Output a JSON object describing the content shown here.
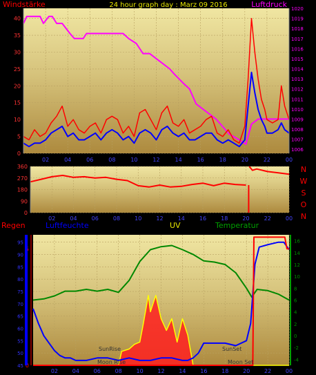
{
  "chart_data": [
    {
      "type": "line",
      "title": "24 hour graph day : Marz 09 2016",
      "ylabel": "Windstärke",
      "y2label": "Luftdruck",
      "x_ticks": [
        "02",
        "04",
        "06",
        "08",
        "10",
        "12",
        "14",
        "16",
        "18",
        "20",
        "22",
        "00"
      ],
      "ylim": [
        0,
        43
      ],
      "y_ticks": [
        0,
        5,
        10,
        15,
        20,
        25,
        30,
        35,
        40
      ],
      "y2lim": [
        1005.6,
        1020
      ],
      "y2_ticks": [
        1006,
        1007,
        1008,
        1009,
        1010,
        1011,
        1012,
        1013,
        1014,
        1015,
        1016,
        1017,
        1018,
        1019,
        1020
      ],
      "x_range": [
        0,
        24
      ],
      "series": [
        {
          "name": "Windstärke",
          "color": "#ff0000",
          "axis": "left",
          "x": [
            0,
            0.5,
            1,
            1.5,
            2,
            2.5,
            3,
            3.5,
            4,
            4.5,
            5,
            5.5,
            6,
            6.5,
            7,
            7.5,
            8,
            8.5,
            9,
            9.5,
            10,
            10.5,
            11,
            11.5,
            12,
            12.5,
            13,
            13.5,
            14,
            14.5,
            15,
            15.5,
            16,
            16.5,
            17,
            17.5,
            18,
            18.5,
            19,
            19.5,
            20,
            20.3,
            20.6,
            20.9,
            21.2,
            21.5,
            21.8,
            22,
            22.5,
            23,
            23.3,
            23.6,
            24
          ],
          "values": [
            5,
            4,
            7,
            5,
            6,
            9,
            11,
            14,
            8,
            10,
            7,
            6,
            8,
            9,
            6,
            10,
            11,
            10,
            6,
            8,
            5,
            12,
            13,
            10,
            7,
            12,
            14,
            9,
            8,
            10,
            6,
            7,
            8,
            10,
            11,
            6,
            5,
            7,
            4,
            3,
            8,
            22,
            40,
            30,
            22,
            16,
            13,
            10,
            9,
            10,
            20,
            14,
            10
          ]
        },
        {
          "name": "Windstärke (mean)",
          "color": "#0000ff",
          "axis": "left",
          "x": [
            0,
            0.5,
            1,
            1.5,
            2,
            2.5,
            3,
            3.5,
            4,
            4.5,
            5,
            5.5,
            6,
            6.5,
            7,
            7.5,
            8,
            8.5,
            9,
            9.5,
            10,
            10.5,
            11,
            11.5,
            12,
            12.5,
            13,
            13.5,
            14,
            14.5,
            15,
            15.5,
            16,
            16.5,
            17,
            17.5,
            18,
            18.5,
            19,
            19.5,
            20,
            20.3,
            20.6,
            20.9,
            21.2,
            21.5,
            21.8,
            22,
            22.5,
            23,
            23.3,
            23.6,
            24
          ],
          "values": [
            3,
            2,
            3,
            3,
            4,
            6,
            7,
            8,
            5,
            6,
            4,
            4,
            5,
            6,
            4,
            6,
            7,
            6,
            4,
            5,
            3,
            6,
            7,
            6,
            4,
            7,
            8,
            6,
            5,
            6,
            4,
            4,
            5,
            6,
            6,
            4,
            3,
            4,
            3,
            2,
            4,
            14,
            24,
            18,
            13,
            10,
            8,
            6,
            6,
            7,
            9,
            7,
            6
          ]
        },
        {
          "name": "Luftdruck",
          "color": "#ff00ff",
          "axis": "right",
          "x": [
            0,
            0.3,
            1.5,
            1.8,
            2.3,
            2.6,
            3,
            3.5,
            4.2,
            4.6,
            5.4,
            5.7,
            6,
            6.4,
            7,
            8,
            9,
            9.5,
            10.2,
            10.8,
            11.4,
            12,
            12.6,
            13.2,
            13.6,
            14.5,
            15,
            15.6,
            16.2,
            17.4,
            18.2,
            18.6,
            19.4,
            20.1,
            20.6,
            21.2,
            22,
            22.8,
            23.4,
            24
          ],
          "values": [
            1018.5,
            1019.2,
            1019.2,
            1018.5,
            1019.2,
            1019.2,
            1018.5,
            1018.5,
            1017.5,
            1017.0,
            1017.0,
            1017.5,
            1017.5,
            1017.5,
            1017.5,
            1017.5,
            1017.5,
            1017.0,
            1016.5,
            1015.5,
            1015.5,
            1015.0,
            1014.5,
            1014.0,
            1013.5,
            1012.5,
            1012.0,
            1010.5,
            1010.0,
            1009.0,
            1008.0,
            1007.5,
            1007.0,
            1006.5,
            1008.5,
            1009.0,
            1009.0,
            1009.0,
            1009.0,
            1009.0
          ]
        }
      ]
    },
    {
      "type": "line",
      "title": "",
      "right_labels": [
        "N",
        "W",
        "S",
        "O",
        "N"
      ],
      "x_ticks": [
        "02",
        "04",
        "06",
        "08",
        "10",
        "12",
        "14",
        "16",
        "18",
        "20",
        "22",
        "00"
      ],
      "ylim": [
        0,
        360
      ],
      "y_ticks": [
        0,
        90,
        180,
        270,
        360
      ],
      "x_range": [
        0,
        24
      ],
      "series": [
        {
          "name": "Windrichtung",
          "color": "#ff0000",
          "x": [
            0,
            1,
            2,
            3,
            4,
            5,
            6,
            7,
            8,
            9,
            10,
            11,
            12,
            13,
            14,
            15,
            16,
            17,
            18,
            19,
            20,
            20.3,
            20.6,
            21,
            22,
            23,
            24
          ],
          "values": [
            240,
            260,
            280,
            290,
            275,
            280,
            270,
            275,
            260,
            250,
            210,
            200,
            215,
            200,
            205,
            220,
            230,
            210,
            230,
            220,
            215,
            360,
            330,
            340,
            320,
            310,
            300
          ]
        }
      ]
    },
    {
      "type": "line",
      "labels": [
        "Regen",
        "Luftfeuchte",
        "UV",
        "Temperatur"
      ],
      "annotations": [
        "SunRise",
        "Moon Rise",
        "SunSet",
        "Moon Set"
      ],
      "x_ticks": [
        "02",
        "04",
        "06",
        "08",
        "10",
        "12",
        "14",
        "16",
        "18",
        "20",
        "22",
        "00"
      ],
      "x_range": [
        0,
        24
      ],
      "ylim_regen": [
        0,
        5.6
      ],
      "y_ticks_regen": [
        0,
        5
      ],
      "ylim_humidity": [
        45,
        98
      ],
      "y_ticks_humidity": [
        45,
        50,
        55,
        60,
        65,
        70,
        75,
        80,
        85,
        90,
        95
      ],
      "ylim_temperature": [
        -5,
        17
      ],
      "y_ticks_temperature": [
        -4,
        -2,
        0,
        2,
        4,
        6,
        8,
        10,
        12,
        14,
        16
      ],
      "series": [
        {
          "name": "Luftfeuchte",
          "color": "#0000ff",
          "axis": "humidity",
          "x": [
            0,
            0.5,
            1,
            1.5,
            2,
            2.5,
            3,
            3.5,
            4,
            5,
            6,
            7,
            8,
            9,
            10,
            11,
            12,
            13,
            14,
            14.5,
            15,
            15.5,
            16,
            17,
            18,
            19,
            20,
            20.4,
            20.8,
            21.2,
            22,
            23,
            23.5,
            24
          ],
          "values": [
            68,
            62,
            57,
            54,
            51,
            49,
            48,
            48,
            47,
            47,
            48,
            48,
            47,
            48,
            47,
            47,
            48,
            48,
            47,
            47,
            48,
            50,
            54,
            54,
            54,
            53,
            55,
            62,
            86,
            93,
            94,
            95,
            95,
            92
          ]
        },
        {
          "name": "Temperatur",
          "color": "#008800",
          "axis": "temperature",
          "x": [
            0,
            1,
            2,
            3,
            4,
            5,
            6,
            7,
            8,
            9,
            10,
            11,
            12,
            13,
            14,
            15,
            16,
            17,
            18,
            19,
            20,
            20.5,
            21,
            22,
            23,
            24
          ],
          "values": [
            6,
            6.2,
            6.7,
            7.5,
            7.5,
            7.8,
            7.5,
            7.8,
            7.3,
            9.3,
            12.5,
            14.5,
            15,
            15.2,
            14.5,
            13.7,
            12.6,
            12.4,
            12,
            10.6,
            8,
            6.5,
            7.8,
            7.6,
            7,
            6
          ]
        },
        {
          "name": "Regen",
          "color": "#ff0000",
          "axis": "regen",
          "x": [
            0,
            20.6,
            20.7,
            23.6,
            23.8,
            24
          ],
          "values": [
            0,
            0,
            5.5,
            5.5,
            5.0,
            5.0
          ]
        },
        {
          "name": "UV",
          "color": "#ffff00",
          "axis": "regen",
          "x": [
            0,
            8,
            8.3,
            9,
            9.5,
            10,
            10.3,
            10.8,
            11,
            11.5,
            12,
            12.5,
            13,
            13.5,
            14,
            14.5,
            15,
            24
          ],
          "values": [
            0,
            0,
            0.6,
            0.7,
            0.9,
            1.0,
            1.7,
            3.0,
            2.3,
            3.0,
            2.0,
            1.5,
            2.0,
            1.0,
            2.0,
            1.3,
            0,
            0
          ]
        }
      ]
    }
  ]
}
